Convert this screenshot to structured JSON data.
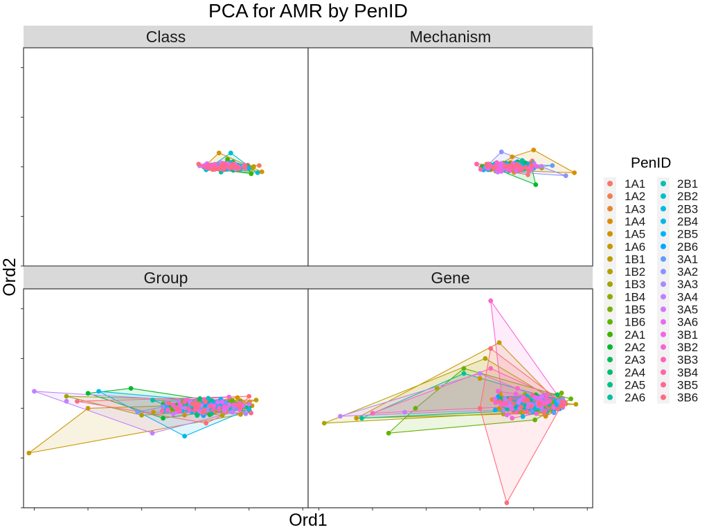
{
  "chart_data": {
    "type": "scatter",
    "title": "PCA for AMR by PenID",
    "xlabel": "Ord1",
    "ylabel": "Ord2",
    "legend_title": "PenID",
    "legend_position": "right",
    "grid": false,
    "facets": [
      "Class",
      "Mechanism",
      "Group",
      "Gene"
    ],
    "pen_ids": [
      "1A1",
      "1A2",
      "1A3",
      "1A4",
      "1A5",
      "1A6",
      "1B1",
      "1B2",
      "1B3",
      "1B4",
      "1B5",
      "1B6",
      "2A1",
      "2A2",
      "2A3",
      "2A4",
      "2A5",
      "2A6",
      "2B1",
      "2B2",
      "2B3",
      "2B4",
      "2B5",
      "2B6",
      "3A1",
      "3A2",
      "3A3",
      "3A4",
      "3A5",
      "3A6",
      "3B1",
      "3B2",
      "3B3",
      "3B4",
      "3B5",
      "3B6"
    ],
    "colors": [
      "#F8766D",
      "#F17E4F",
      "#E8862D",
      "#DE8C00",
      "#D49200",
      "#C99800",
      "#BD9D00",
      "#AFA200",
      "#A0A600",
      "#8EAB00",
      "#7AAF00",
      "#62B300",
      "#3BB600",
      "#00B92C",
      "#00BB55",
      "#00BD71",
      "#00BF8A",
      "#00C0A2",
      "#00C0B7",
      "#00BFCB",
      "#00BCDE",
      "#00B8EE",
      "#00B2FC",
      "#00A9FF",
      "#619CFF",
      "#8B93FF",
      "#A98AFF",
      "#C180FF",
      "#D576FF",
      "#E46CF5",
      "#F066E4",
      "#F865D2",
      "#FD64BE",
      "#FF65A9",
      "#FF6893",
      "#FF6C7D"
    ],
    "panel": {
      "xlim": [
        -1.6,
        1.05
      ],
      "ylim": [
        -1.0,
        1.2
      ],
      "x_ticks": [
        -1.5,
        -1.0,
        -0.5,
        0.0,
        0.5,
        1.0
      ],
      "y_ticks": [
        -1.0,
        -0.5,
        0.0,
        0.5,
        1.0
      ],
      "tick_labels_visible": false
    },
    "panels": [
      {
        "facet": "Class",
        "center": [
          0.3,
          0.0
        ],
        "spread": [
          0.18,
          0.03
        ],
        "extremes": [
          {
            "pen": "2A1",
            "points": [
              [
                0.3,
                0.07
              ],
              [
                0.52,
                -0.07
              ],
              [
                0.2,
                -0.02
              ],
              [
                0.35,
                0.05
              ]
            ]
          },
          {
            "pen": "1A5",
            "points": [
              [
                0.22,
                0.14
              ],
              [
                0.62,
                -0.05
              ],
              [
                0.08,
                0.0
              ],
              [
                0.3,
                0.08
              ]
            ]
          },
          {
            "pen": "2B2",
            "points": [
              [
                0.33,
                0.14
              ],
              [
                0.58,
                -0.06
              ],
              [
                0.1,
                -0.03
              ]
            ]
          }
        ]
      },
      {
        "facet": "Mechanism",
        "center": [
          0.3,
          0.0
        ],
        "spread": [
          0.2,
          0.04
        ],
        "extremes": [
          {
            "pen": "2A2",
            "points": [
              [
                0.35,
                0.05
              ],
              [
                0.52,
                -0.18
              ],
              [
                0.1,
                0.0
              ],
              [
                0.25,
                0.03
              ]
            ]
          },
          {
            "pen": "1A5",
            "points": [
              [
                0.5,
                0.17
              ],
              [
                0.88,
                -0.06
              ],
              [
                0.1,
                -0.03
              ],
              [
                0.3,
                0.1
              ]
            ]
          },
          {
            "pen": "3A2",
            "points": [
              [
                0.2,
                0.15
              ],
              [
                0.8,
                -0.09
              ],
              [
                0.15,
                -0.04
              ]
            ]
          }
        ]
      },
      {
        "facet": "Group",
        "center": [
          0.1,
          0.02
        ],
        "spread": [
          0.35,
          0.07
        ],
        "extremes": [
          {
            "pen": "1A6",
            "points": [
              [
                -1.55,
                -0.45
              ],
              [
                -0.1,
                -0.07
              ],
              [
                0.5,
                0.05
              ],
              [
                -1.0,
                0.0
              ]
            ]
          },
          {
            "pen": "2A2",
            "points": [
              [
                -0.6,
                0.2
              ],
              [
                0.5,
                0.02
              ],
              [
                -0.3,
                -0.1
              ],
              [
                -1.0,
                0.15
              ]
            ]
          },
          {
            "pen": "3A4",
            "points": [
              [
                -1.5,
                0.17
              ],
              [
                -0.4,
                -0.25
              ],
              [
                0.5,
                0.04
              ],
              [
                -1.2,
                0.07
              ]
            ]
          },
          {
            "pen": "2B4",
            "points": [
              [
                -0.9,
                0.17
              ],
              [
                -0.1,
                -0.28
              ],
              [
                0.5,
                -0.01
              ]
            ]
          },
          {
            "pen": "3B6",
            "points": [
              [
                -1.1,
                0.07
              ],
              [
                0.5,
                0.12
              ],
              [
                0.1,
                -0.15
              ]
            ]
          },
          {
            "pen": "1B3",
            "points": [
              [
                -1.2,
                0.12
              ],
              [
                0.5,
                0.0
              ],
              [
                -0.5,
                -0.07
              ]
            ]
          }
        ]
      },
      {
        "facet": "Gene",
        "center": [
          0.5,
          0.05
        ],
        "spread": [
          0.3,
          0.09
        ],
        "extremes": [
          {
            "pen": "3B2",
            "points": [
              [
                0.1,
                1.08
              ],
              [
                0.35,
                0.2
              ],
              [
                0.6,
                0.05
              ],
              [
                0.3,
                -0.1
              ]
            ]
          },
          {
            "pen": "3B6",
            "points": [
              [
                0.25,
                -0.95
              ],
              [
                0.6,
                -0.05
              ],
              [
                0.1,
                0.6
              ],
              [
                0.0,
                0.0
              ]
            ]
          },
          {
            "pen": "1A6",
            "points": [
              [
                0.18,
                0.66
              ],
              [
                0.6,
                -0.05
              ],
              [
                -1.15,
                -0.1
              ],
              [
                0.0,
                0.3
              ]
            ]
          },
          {
            "pen": "1B2",
            "points": [
              [
                -1.45,
                -0.15
              ],
              [
                0.05,
                0.5
              ],
              [
                0.6,
                0.0
              ],
              [
                -0.4,
                0.2
              ]
            ]
          },
          {
            "pen": "1B6",
            "points": [
              [
                -0.15,
                0.4
              ],
              [
                0.6,
                -0.05
              ],
              [
                -0.85,
                -0.25
              ],
              [
                -0.6,
                0.0
              ]
            ]
          },
          {
            "pen": "3A4",
            "points": [
              [
                -1.3,
                -0.08
              ],
              [
                0.0,
                0.35
              ],
              [
                0.6,
                0.05
              ],
              [
                -0.7,
                -0.04
              ]
            ]
          },
          {
            "pen": "2A6",
            "points": [
              [
                -0.15,
                0.35
              ],
              [
                0.6,
                -0.01
              ],
              [
                -1.1,
                -0.1
              ]
            ]
          },
          {
            "pen": "3B3",
            "points": [
              [
                0.1,
                0.4
              ],
              [
                0.65,
                0.07
              ],
              [
                -1.0,
                -0.05
              ]
            ]
          }
        ]
      }
    ]
  }
}
